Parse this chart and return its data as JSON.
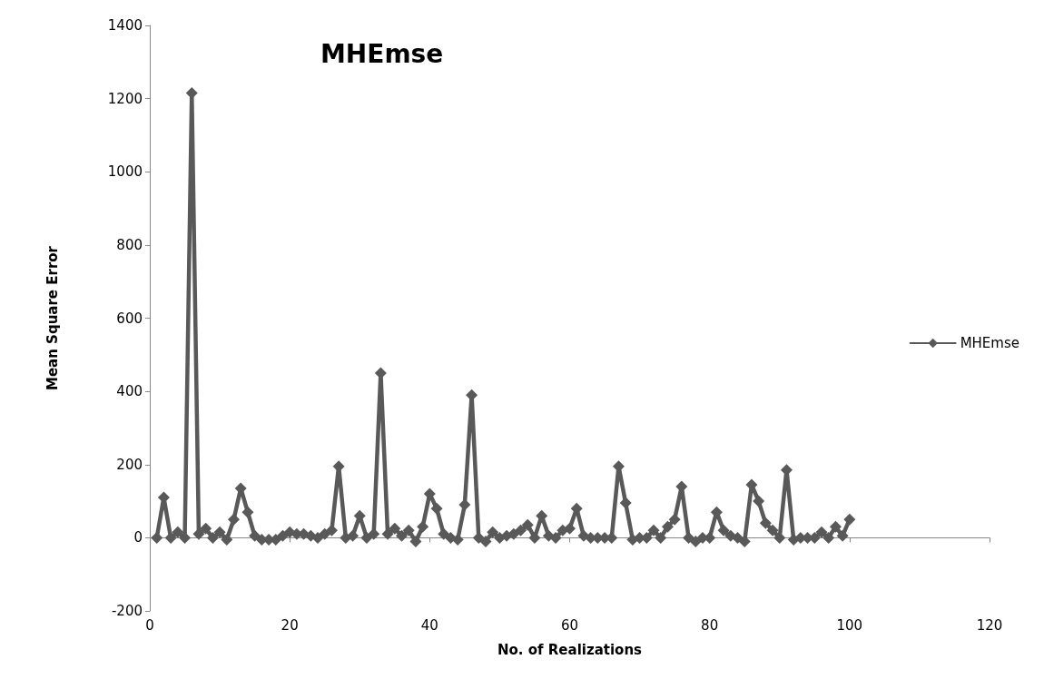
{
  "chart_data": {
    "type": "line",
    "title": "MHEmse",
    "xlabel": "No. of Realizations",
    "ylabel": "Mean Square Error",
    "xlim": [
      0,
      120
    ],
    "xticks": [
      0,
      20,
      40,
      60,
      80,
      100,
      120
    ],
    "ylim": [
      -200,
      1400
    ],
    "yticks": [
      -200,
      0,
      200,
      400,
      600,
      800,
      1000,
      1200,
      1400
    ],
    "legend": "right",
    "marker": "diamond",
    "line_style": "solid",
    "x": [
      1,
      2,
      3,
      4,
      5,
      6,
      7,
      8,
      9,
      10,
      11,
      12,
      13,
      14,
      15,
      16,
      17,
      18,
      19,
      20,
      21,
      22,
      23,
      24,
      25,
      26,
      27,
      28,
      29,
      30,
      31,
      32,
      33,
      34,
      35,
      36,
      37,
      38,
      39,
      40,
      41,
      42,
      43,
      44,
      45,
      46,
      47,
      48,
      49,
      50,
      51,
      52,
      53,
      54,
      55,
      56,
      57,
      58,
      59,
      60,
      61,
      62,
      63,
      64,
      65,
      66,
      67,
      68,
      69,
      70,
      71,
      72,
      73,
      74,
      75,
      76,
      77,
      78,
      79,
      80,
      81,
      82,
      83,
      84,
      85,
      86,
      87,
      88,
      89,
      90,
      91,
      92,
      93,
      94,
      95,
      96,
      97,
      98,
      99,
      100
    ],
    "series": [
      {
        "name": "MHEmse",
        "color": "#595959",
        "values": [
          0,
          110,
          0,
          15,
          0,
          1215,
          10,
          25,
          0,
          15,
          -5,
          50,
          135,
          70,
          5,
          -5,
          -5,
          -5,
          5,
          15,
          10,
          10,
          5,
          0,
          10,
          20,
          195,
          0,
          5,
          60,
          0,
          10,
          450,
          10,
          25,
          5,
          20,
          -10,
          30,
          120,
          80,
          10,
          0,
          -5,
          90,
          390,
          0,
          -10,
          15,
          0,
          5,
          10,
          20,
          35,
          0,
          60,
          5,
          0,
          20,
          25,
          80,
          5,
          0,
          0,
          0,
          0,
          195,
          95,
          -5,
          0,
          0,
          20,
          0,
          30,
          50,
          140,
          0,
          -10,
          0,
          0,
          70,
          20,
          5,
          0,
          -10,
          145,
          100,
          40,
          20,
          0,
          185,
          -5,
          0,
          0,
          0,
          15,
          0,
          30,
          5,
          50
        ]
      }
    ]
  }
}
